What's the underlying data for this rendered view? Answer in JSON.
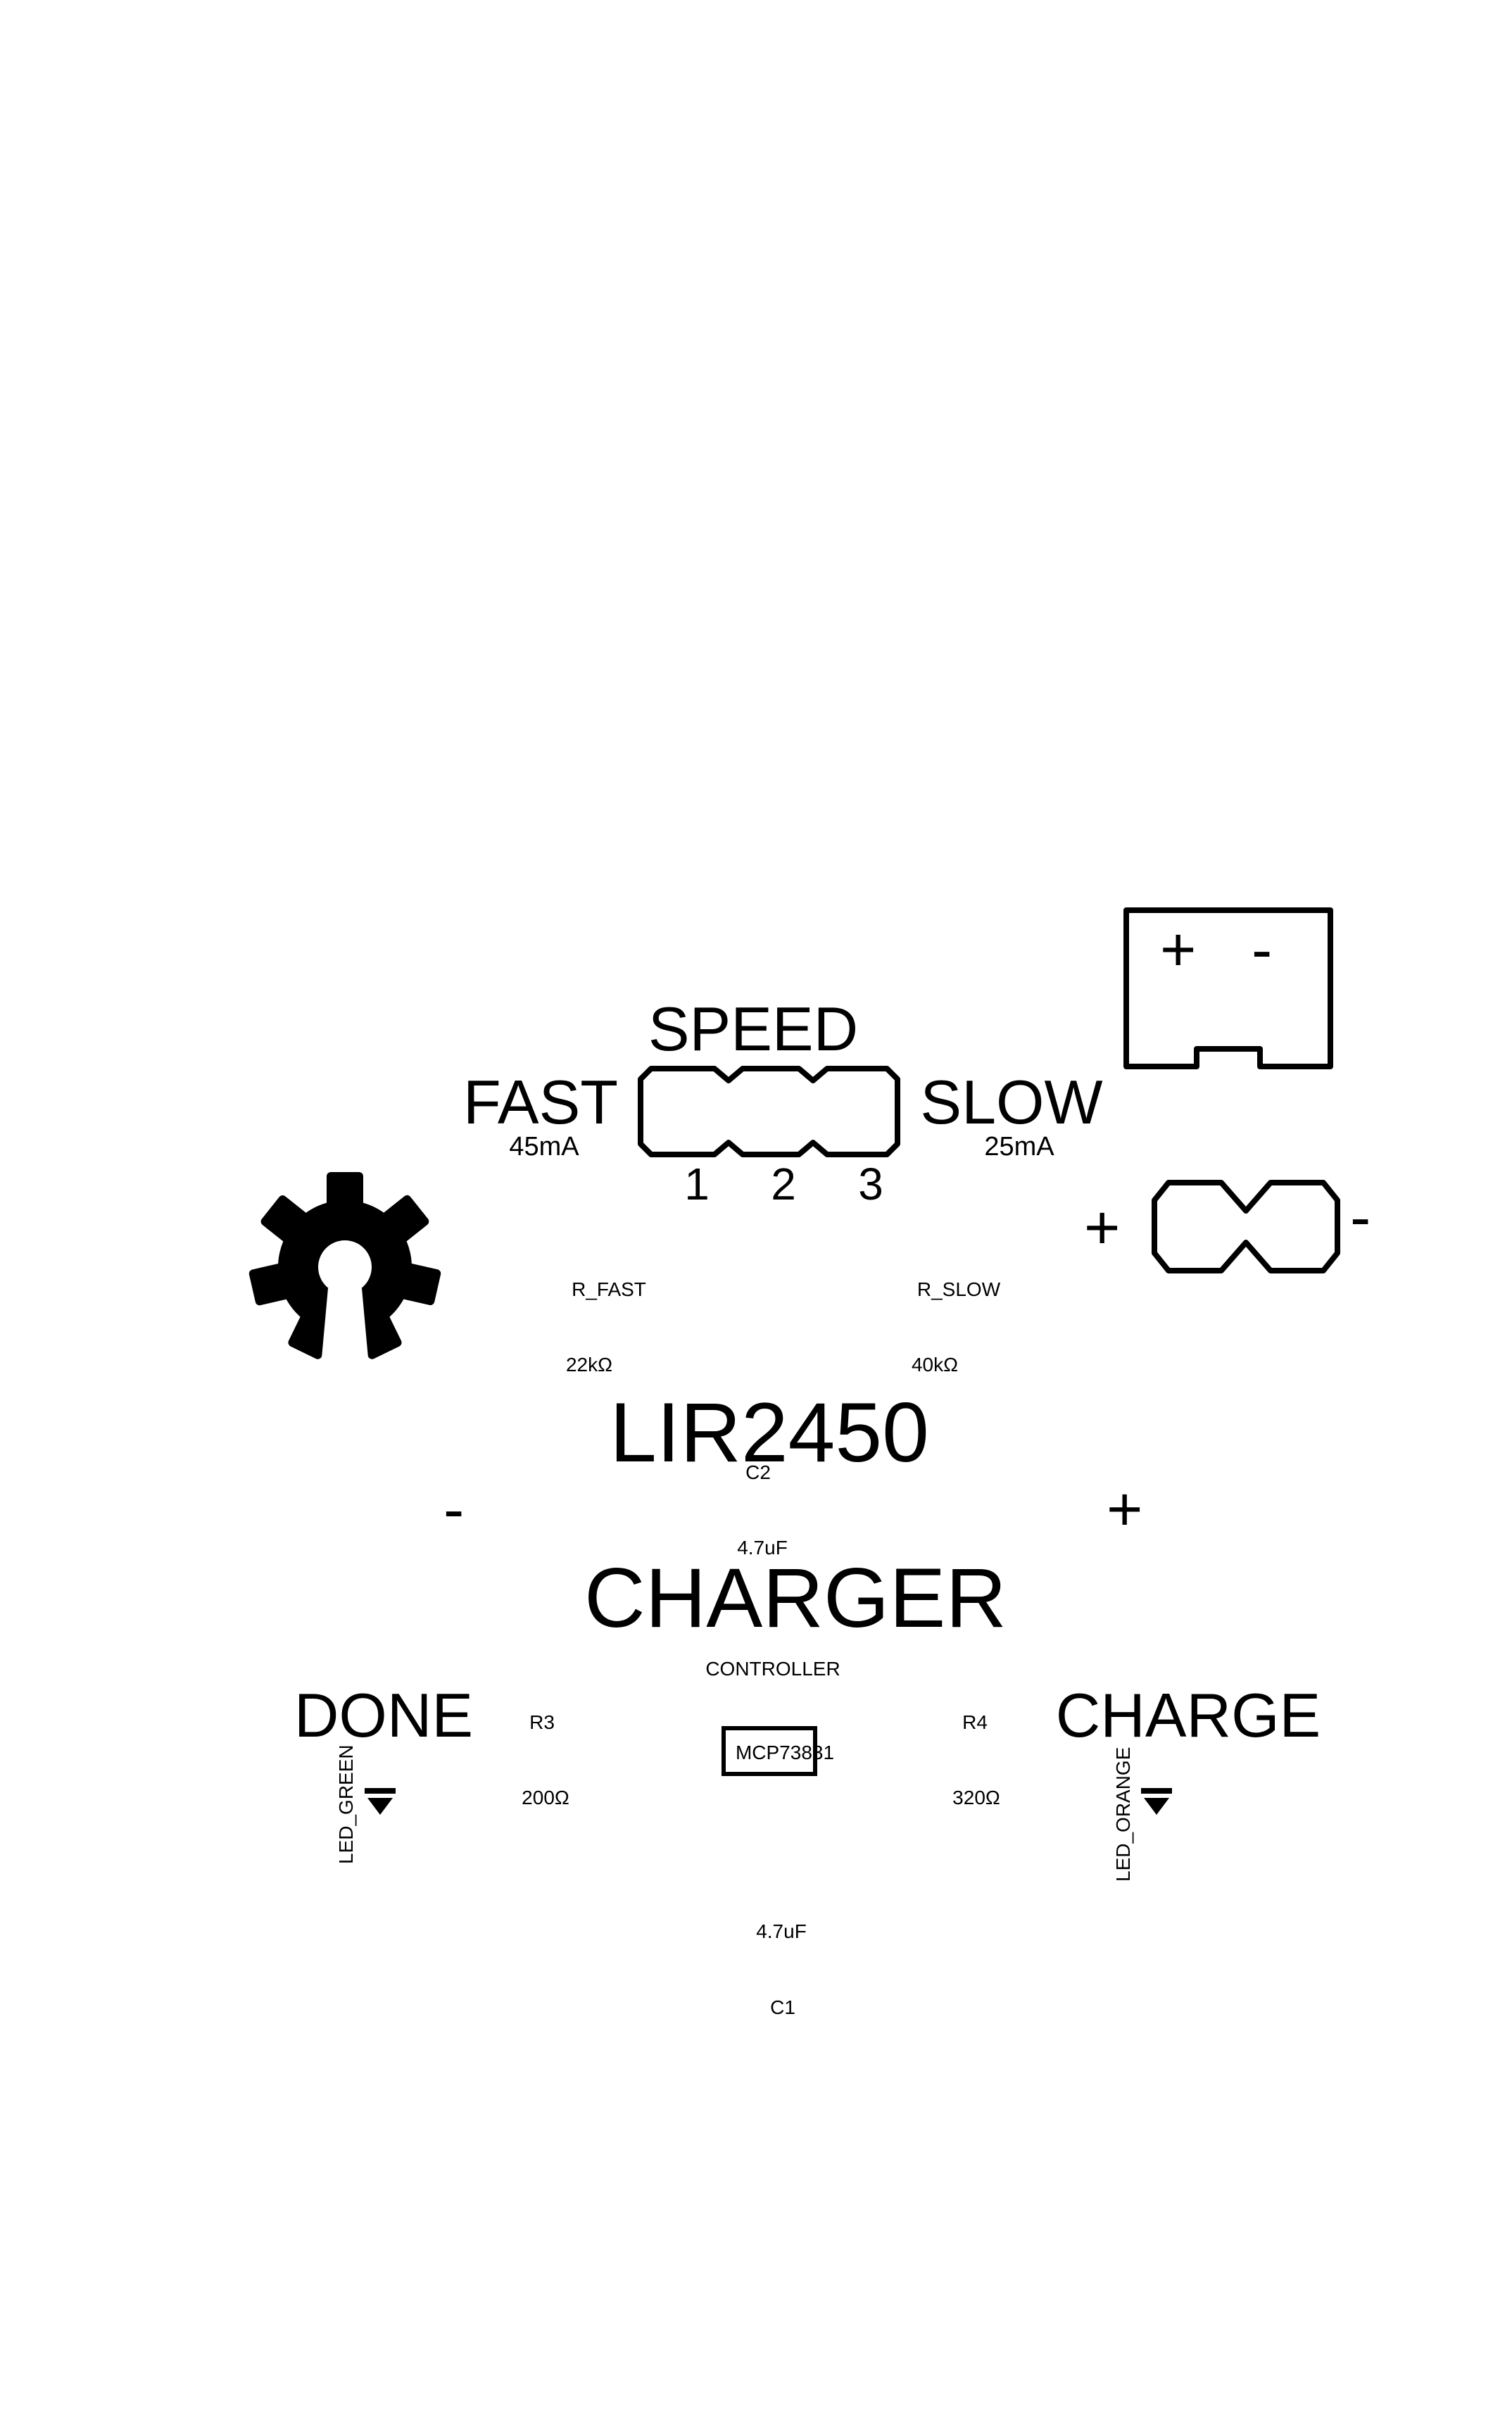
{
  "board": {
    "title_line1": "LIR2450",
    "title_line2": "CHARGER"
  },
  "speed": {
    "label": "SPEED",
    "fast": "FAST",
    "fast_current": "45mA",
    "slow": "SLOW",
    "slow_current": "25mA",
    "pins": [
      "1",
      "2",
      "3"
    ]
  },
  "resistors": {
    "r_fast_name": "R_FAST",
    "r_fast_value": "22kΩ",
    "r_slow_name": "R_SLOW",
    "r_slow_value": "40kΩ",
    "r3_name": "R3",
    "r3_value": "200Ω",
    "r4_name": "R4",
    "r4_value": "320Ω"
  },
  "capacitors": {
    "c2_name": "C2",
    "c2_value": "4.7uF",
    "c1_name": "C1",
    "c1_value": "4.7uF"
  },
  "controller": {
    "label": "CONTROLLER",
    "chip": "MCP73831"
  },
  "leds": {
    "done": "DONE",
    "green": "LED_GREEN",
    "charge": "CHARGE",
    "orange": "LED_ORANGE"
  },
  "polarity": {
    "power_plus": "+",
    "power_minus": "-",
    "jack_plus": "+",
    "jack_minus": "-",
    "battery_minus": "-",
    "battery_plus": "+"
  },
  "colors": {
    "ink": "#000000",
    "background": "#ffffff"
  },
  "icons": {
    "logo": "open-hardware-gear-icon"
  }
}
